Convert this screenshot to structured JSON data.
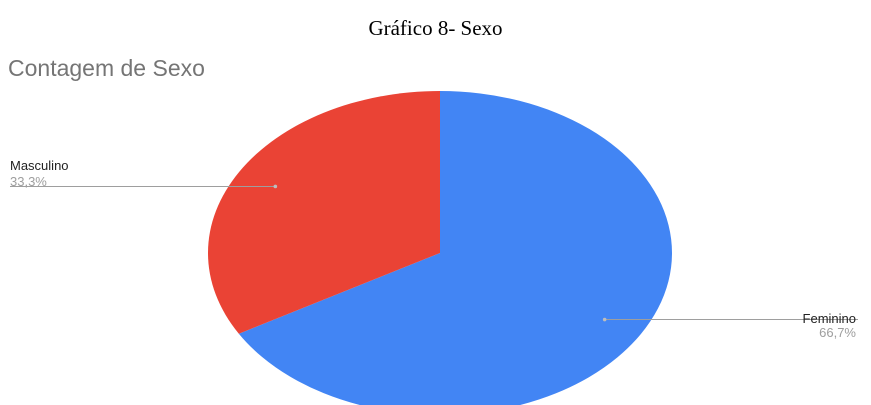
{
  "figure_caption": "Gráfico 8- Sexo",
  "chart_data": {
    "type": "pie",
    "title": "Contagem de Sexo",
    "categories": [
      "Feminino",
      "Masculino"
    ],
    "values": [
      66.7,
      33.3
    ],
    "labels": [
      "66,7%",
      "33,3%"
    ],
    "colors": [
      "#4285f4",
      "#ea4335"
    ],
    "legend": "none"
  }
}
